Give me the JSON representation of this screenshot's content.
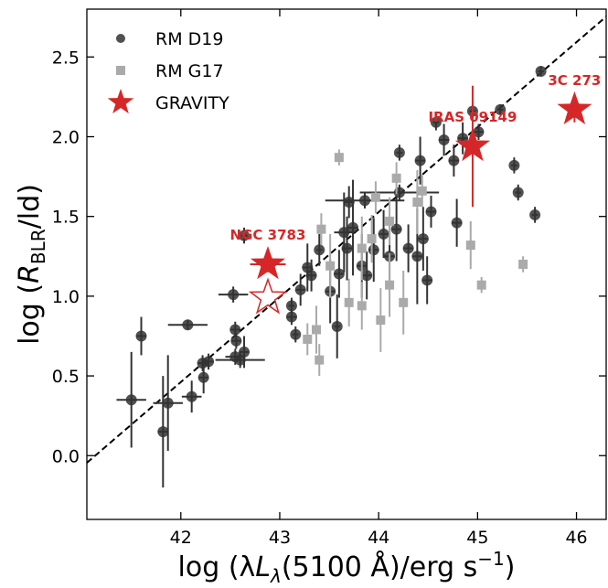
{
  "chart_data": {
    "type": "scatter",
    "x_label": [
      "log (λ",
      "L",
      "λ",
      "(5100 Å)/erg s",
      "−1",
      ")"
    ],
    "y_label": [
      "log (",
      "R",
      "BLR",
      "/ld)"
    ],
    "xlim": [
      41.05,
      46.3
    ],
    "ylim": [
      -0.4,
      2.8
    ],
    "xticks": [
      42,
      43,
      44,
      45,
      46
    ],
    "yticks": [
      {
        "value": 0,
        "label": "0.0"
      },
      0.5,
      {
        "value": 1,
        "label": "1.0"
      },
      1.5,
      {
        "value": 2,
        "label": "2.0"
      },
      2.5
    ],
    "legend": "upper left",
    "fit": {
      "x": [
        41.05,
        46.3
      ],
      "y": [
        -0.045,
        2.753
      ],
      "color": "#000000"
    },
    "series": [
      {
        "name": "RM D19",
        "color": "#333333",
        "marker": "circle",
        "x": [
          41.5,
          41.6,
          41.87,
          41.82,
          42.07,
          42.11,
          42.22,
          42.23,
          42.28,
          42.53,
          42.55,
          42.55,
          42.56,
          42.64,
          42.64,
          42.6,
          43.12,
          43.12,
          43.16,
          43.21,
          43.28,
          43.32,
          43.4,
          43.51,
          43.58,
          43.6,
          43.65,
          43.68,
          43.7,
          43.74,
          43.83,
          43.86,
          43.88,
          43.95,
          44.05,
          44.11,
          44.18,
          44.21,
          44.3,
          44.39,
          44.42,
          44.45,
          44.53,
          44.49,
          44.58,
          44.66,
          44.76,
          44.79,
          44.85,
          44.95,
          45.01,
          45.23,
          45.37,
          45.41,
          45.58,
          45.64,
          44.21
        ],
        "y": [
          0.35,
          0.75,
          0.33,
          0.15,
          0.82,
          0.37,
          0.58,
          0.49,
          0.59,
          1.01,
          0.79,
          0.62,
          0.72,
          1.38,
          0.65,
          0.6,
          0.94,
          0.87,
          0.76,
          1.04,
          1.18,
          1.13,
          1.29,
          1.03,
          0.81,
          1.14,
          1.4,
          1.3,
          1.59,
          1.43,
          1.19,
          1.6,
          1.13,
          1.29,
          1.39,
          1.25,
          1.42,
          1.65,
          1.3,
          1.25,
          1.85,
          1.36,
          1.53,
          1.1,
          2.09,
          1.98,
          1.85,
          1.46,
          1.99,
          2.16,
          2.03,
          2.17,
          1.82,
          1.65,
          1.51,
          2.41,
          1.9
        ],
        "xerr": [
          0.15,
          0.05,
          0.15,
          0.05,
          0.2,
          0.1,
          0.05,
          0.05,
          0.05,
          0.15,
          0.05,
          0.1,
          0.05,
          0.03,
          0.05,
          0.25,
          0.03,
          0.05,
          0.03,
          0.05,
          0.05,
          0.05,
          0.03,
          0.05,
          0.03,
          0.05,
          0.1,
          0.05,
          0.05,
          0.05,
          0.05,
          0.4,
          0.05,
          0.05,
          0.05,
          0.05,
          0.05,
          0.4,
          0.05,
          0.05,
          0.05,
          0.05,
          0.05,
          0.05,
          0.03,
          0.05,
          0.05,
          0.05,
          0.05,
          0.03,
          0.05,
          0.03,
          0.03,
          0.03,
          0.03,
          0.03,
          0.03
        ],
        "yerr": [
          0.3,
          0.12,
          0.3,
          0.35,
          0.03,
          0.1,
          0.05,
          0.1,
          0.05,
          0.05,
          0.05,
          0.05,
          0.05,
          0.05,
          0.1,
          0.05,
          0.05,
          0.05,
          0.05,
          0.1,
          0.15,
          0.1,
          0.1,
          0.2,
          0.2,
          0.15,
          0.25,
          0.2,
          0.1,
          0.3,
          0.2,
          0.05,
          0.15,
          0.2,
          0.15,
          0.2,
          0.2,
          0.05,
          0.15,
          0.3,
          0.15,
          0.2,
          0.1,
          0.15,
          0.05,
          0.1,
          0.1,
          0.15,
          0.1,
          0.05,
          0.05,
          0.03,
          0.05,
          0.05,
          0.05,
          0.03,
          0.05
        ]
      },
      {
        "name": "RM G17",
        "color": "#aaaaaa",
        "marker": "square",
        "x": [
          43.6,
          43.42,
          43.97,
          44.18,
          44.44,
          43.93,
          44.02,
          44.25,
          43.37,
          43.28,
          43.4,
          43.83,
          44.11,
          44.93,
          45.04,
          45.46,
          43.7,
          43.51,
          44.39,
          44.11,
          43.83
        ],
        "y": [
          1.87,
          1.42,
          1.62,
          1.74,
          1.66,
          1.36,
          0.85,
          0.96,
          0.79,
          0.73,
          0.6,
          0.94,
          1.07,
          1.32,
          1.07,
          1.2,
          0.96,
          1.19,
          1.59,
          1.47,
          1.3
        ],
        "yerr": [
          0.05,
          0.1,
          0.1,
          0.1,
          0.1,
          0.15,
          0.2,
          0.2,
          0.15,
          0.1,
          0.1,
          0.15,
          0.2,
          0.15,
          0.05,
          0.05,
          0.15,
          0.2,
          0.2,
          0.15,
          0.2
        ]
      },
      {
        "name": "GRAVITY",
        "color": "#d62728",
        "marker": "star",
        "x": [
          42.88,
          44.95,
          45.98
        ],
        "y": [
          1.2,
          1.94,
          2.17
        ],
        "xerr": [
          0.18,
          0.05,
          0.05
        ],
        "yerr": [
          0.05,
          0.38,
          0.08
        ],
        "labels": [
          "NGC 3783",
          "IRAS 09149",
          "3C 273"
        ]
      }
    ],
    "open_star": {
      "x": 42.88,
      "y": 0.99,
      "color": "#d62728"
    }
  }
}
